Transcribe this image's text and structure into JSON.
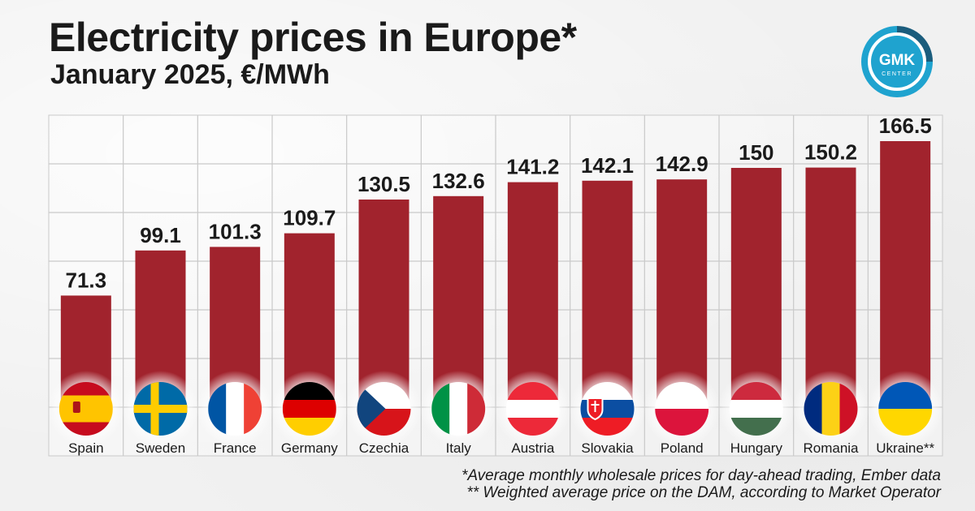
{
  "header": {
    "title": "Electricity prices in Europe*",
    "subtitle": "January 2025, €/MWh"
  },
  "logo": {
    "text_top": "GMK",
    "text_bottom": "CENTER"
  },
  "colors": {
    "bar": "#a1232d",
    "grid": "#c9c9c9",
    "text": "#1a1a1a",
    "logo_teal": "#1fa3cf",
    "logo_dark": "#1b5d7d"
  },
  "chart_data": {
    "type": "bar",
    "title": "Electricity prices in Europe*",
    "subtitle": "January 2025, €/MWh",
    "unit": "€/MWh",
    "categories": [
      "Spain",
      "Sweden",
      "France",
      "Germany",
      "Czechia",
      "Italy",
      "Austria",
      "Slovakia",
      "Poland",
      "Hungary",
      "Romania",
      "Ukraine**"
    ],
    "values": [
      71.3,
      99.1,
      101.3,
      109.7,
      130.5,
      132.6,
      141.2,
      142.1,
      142.9,
      150,
      150.2,
      166.5
    ],
    "value_labels": [
      "71.3",
      "99.1",
      "101.3",
      "109.7",
      "130.5",
      "132.6",
      "141.2",
      "142.1",
      "142.9",
      "150",
      "150.2",
      "166.5"
    ],
    "flags": [
      "spain-flag-icon",
      "sweden-flag-icon",
      "france-flag-icon",
      "germany-flag-icon",
      "czechia-flag-icon",
      "italy-flag-icon",
      "austria-flag-icon",
      "slovakia-flag-icon",
      "poland-flag-icon",
      "hungary-flag-icon",
      "romania-flag-icon",
      "ukraine-flag-icon"
    ],
    "ylim": [
      0,
      180
    ],
    "grid": true,
    "xlabel": "",
    "ylabel": ""
  },
  "footnotes": [
    "*Average monthly wholesale prices for day-ahead trading, Ember data",
    "** Weighted average price on the DAM, according to Market Operator"
  ]
}
